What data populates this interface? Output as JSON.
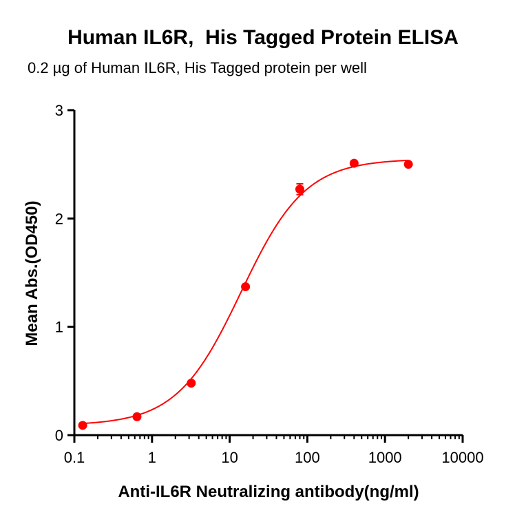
{
  "chart_data": {
    "type": "scatter",
    "title": "Human IL6R,  His Tagged Protein ELISA",
    "subtitle": "0.2 µg of Human IL6R, His Tagged protein per well",
    "xlabel": "Anti-IL6R Neutralizing antibody(ng/ml)",
    "ylabel": "Mean Abs.(OD450)",
    "xscale": "log",
    "xlim": [
      0.1,
      10000
    ],
    "ylim": [
      0,
      3
    ],
    "x_ticks": [
      0.1,
      1,
      10,
      100,
      1000,
      10000
    ],
    "x_tick_labels": [
      "0.1",
      "1",
      "10",
      "100",
      "1000",
      "10000"
    ],
    "y_ticks": [
      0,
      1,
      2,
      3
    ],
    "y_tick_labels": [
      "0",
      "1",
      "2",
      "3"
    ],
    "grid": false,
    "series": [
      {
        "color": "#ff0000",
        "x": [
          0.128,
          0.64,
          3.2,
          16,
          80,
          400,
          2000
        ],
        "y": [
          0.09,
          0.17,
          0.48,
          1.37,
          2.27,
          2.51,
          2.5
        ],
        "error": [
          0.01,
          0.01,
          0.01,
          0.02,
          0.05,
          0.01,
          0.01
        ],
        "fit": {
          "model": "4PL",
          "bottom": 0.09,
          "top": 2.55,
          "ec50": 14,
          "hill": 1.05
        }
      }
    ]
  }
}
